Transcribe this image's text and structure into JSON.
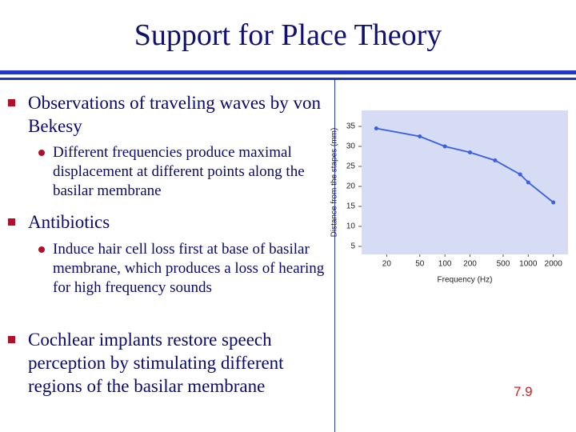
{
  "slide": {
    "title": "Support for Place Theory",
    "bullets": [
      {
        "text": "Observations of traveling waves by von Bekesy",
        "sub": [
          "Different frequencies produce maximal displacement at different points along the basilar membrane"
        ]
      },
      {
        "text": "Antibiotics",
        "sub": [
          "Induce hair cell loss first at base of basilar membrane, which produces a loss of hearing for high frequency sounds"
        ]
      },
      {
        "text": "Cochlear implants restore speech perception by stimulating different regions of the basilar membrane",
        "sub": []
      }
    ],
    "slide_number": "7.9"
  },
  "chart_data": {
    "type": "line",
    "x_label": "Frequency (Hz)",
    "y_label": "Distance from the stapes (mm)",
    "x": [
      15,
      50,
      100,
      200,
      400,
      800,
      1000,
      2000
    ],
    "values": [
      34.5,
      32.5,
      30,
      28.5,
      26.5,
      23,
      21,
      16
    ],
    "color": "#3a5fe0",
    "background": "#d6dcf4",
    "log_x": true,
    "xlim": [
      10,
      3000
    ],
    "xticks": [
      20,
      50,
      100,
      200,
      500,
      1000,
      2000
    ],
    "ylim": [
      3,
      39
    ],
    "yticks": [
      5,
      10,
      15,
      20,
      25,
      30,
      35
    ]
  }
}
